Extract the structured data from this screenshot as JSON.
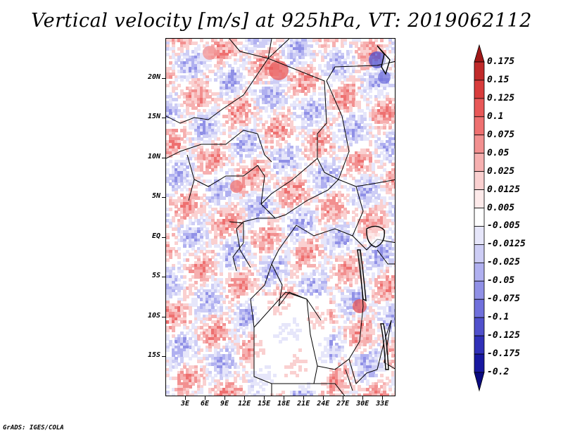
{
  "title": "Vertical velocity [m/s] at 925hPa, VT: 2019062112",
  "footer": "GrADS: IGES/COLA",
  "map": {
    "projection": "lat-lon",
    "lon_range_deg": [
      0,
      35
    ],
    "lat_range_deg": [
      -20,
      25
    ],
    "lat_tick_labels": [
      "20N",
      "15N",
      "10N",
      "5N",
      "EQ",
      "5S",
      "10S",
      "15S"
    ],
    "lat_tick_values": [
      20,
      15,
      10,
      5,
      0,
      -5,
      -10,
      -15
    ],
    "lon_tick_labels": [
      "3E",
      "6E",
      "9E",
      "12E",
      "15E",
      "18E",
      "21E",
      "24E",
      "27E",
      "30E",
      "33E"
    ],
    "lon_tick_values": [
      3,
      6,
      9,
      12,
      15,
      18,
      21,
      24,
      27,
      30,
      33
    ]
  },
  "colorbar": {
    "labels": [
      "0.175",
      "0.15",
      "0.125",
      "0.1",
      "0.075",
      "0.05",
      "0.025",
      "0.0125",
      "0.005",
      "-0.005",
      "-0.0125",
      "-0.025",
      "-0.05",
      "-0.075",
      "-0.1",
      "-0.125",
      "-0.175",
      "-0.2"
    ],
    "colors": [
      "#a01818",
      "#c02a2a",
      "#d83c3c",
      "#e85858",
      "#ee7070",
      "#f29090",
      "#f6b0b0",
      "#fad0d0",
      "#fdeaea",
      "#ffffff",
      "#e6e6fa",
      "#cdcdf5",
      "#b0b0f0",
      "#9090e6",
      "#7070dc",
      "#5050cc",
      "#3030b8",
      "#1818a0",
      "#0a0a80"
    ]
  },
  "colors": {
    "positive": "#e06060",
    "negative": "#6a6ae0",
    "border": "#000000"
  }
}
